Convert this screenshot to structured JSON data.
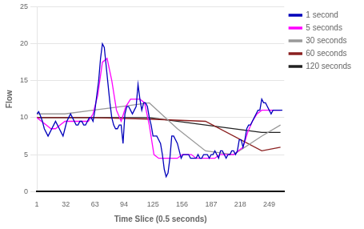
{
  "chart_data": {
    "type": "line",
    "x_label": "Time Slice (0.5 seconds)",
    "y_label": "Flow",
    "xlim": [
      1,
      265
    ],
    "ylim": [
      0,
      25
    ],
    "xticks": [
      1,
      32,
      63,
      94,
      125,
      156,
      187,
      218,
      249
    ],
    "yticks": [
      0,
      5,
      10,
      15,
      20,
      25
    ],
    "grid": "y",
    "legend": "right",
    "series": [
      {
        "name": "1 second",
        "color": "#0000BB",
        "x": [
          1,
          3,
          5,
          7,
          9,
          11,
          13,
          15,
          17,
          19,
          21,
          23,
          25,
          27,
          29,
          31,
          33,
          35,
          37,
          39,
          41,
          43,
          45,
          47,
          49,
          51,
          53,
          55,
          57,
          59,
          61,
          63,
          65,
          67,
          69,
          71,
          73,
          75,
          77,
          79,
          81,
          83,
          85,
          87,
          89,
          91,
          93,
          95,
          97,
          99,
          101,
          103,
          105,
          107,
          109,
          111,
          113,
          115,
          117,
          119,
          121,
          123,
          125,
          127,
          129,
          131,
          133,
          135,
          137,
          139,
          141,
          143,
          145,
          147,
          149,
          151,
          153,
          155,
          157,
          159,
          161,
          163,
          165,
          167,
          169,
          171,
          173,
          175,
          177,
          179,
          181,
          183,
          185,
          187,
          189,
          191,
          193,
          195,
          197,
          199,
          201,
          203,
          205,
          207,
          209,
          211,
          213,
          215,
          217,
          219,
          221,
          223,
          225,
          227,
          229,
          231,
          233,
          235,
          237,
          239,
          241,
          243,
          245,
          247,
          249,
          251,
          253,
          255,
          257,
          259,
          261,
          263
        ],
        "values": [
          10.5,
          10.8,
          10.2,
          9.5,
          8.5,
          8.0,
          7.5,
          8.0,
          8.5,
          9.0,
          9.5,
          9.0,
          8.5,
          8.0,
          7.5,
          8.5,
          9.5,
          10.0,
          10.5,
          10.0,
          9.5,
          9.0,
          9.0,
          9.5,
          9.5,
          9.0,
          9.0,
          9.5,
          10.0,
          10.0,
          9.5,
          11.0,
          13.0,
          15.0,
          18.0,
          20.0,
          19.5,
          17.0,
          14.5,
          12.0,
          10.0,
          9.0,
          8.5,
          8.5,
          9.0,
          9.0,
          6.5,
          10.5,
          11.5,
          11.5,
          11.0,
          10.5,
          11.0,
          11.5,
          14.5,
          12.5,
          11.0,
          12.0,
          12.0,
          11.5,
          10.0,
          9.0,
          7.5,
          7.5,
          7.5,
          7.0,
          6.5,
          5.0,
          3.0,
          2.0,
          2.5,
          4.5,
          7.5,
          7.5,
          7.0,
          6.5,
          5.5,
          4.5,
          5.0,
          5.0,
          5.0,
          5.0,
          4.5,
          4.5,
          4.5,
          4.5,
          5.0,
          4.5,
          4.5,
          5.0,
          5.0,
          5.0,
          4.5,
          5.0,
          5.0,
          5.5,
          5.0,
          4.5,
          5.5,
          5.5,
          5.0,
          4.5,
          5.0,
          5.0,
          5.5,
          5.5,
          5.0,
          5.5,
          7.0,
          7.0,
          6.0,
          7.0,
          8.5,
          9.0,
          9.0,
          9.5,
          10.0,
          10.5,
          11.0,
          11.0,
          12.5,
          12.0,
          12.0,
          11.5,
          11.0,
          10.5,
          11.0,
          11.0,
          11.0,
          11.0,
          11.0,
          11.0
        ]
      },
      {
        "name": "5 seconds",
        "color": "#FF00FF",
        "x": [
          1,
          6,
          11,
          16,
          21,
          26,
          31,
          36,
          41,
          46,
          51,
          56,
          61,
          66,
          71,
          76,
          81,
          86,
          91,
          96,
          101,
          106,
          111,
          116,
          121,
          126,
          131,
          136,
          141,
          146,
          151,
          156,
          161,
          166,
          171,
          176,
          181,
          186,
          191,
          196,
          201,
          206,
          211,
          216,
          221,
          226,
          231,
          236,
          241,
          246,
          251,
          256,
          261
        ],
        "values": [
          10.0,
          9.5,
          9.0,
          8.5,
          8.5,
          9.0,
          9.5,
          9.5,
          9.5,
          9.5,
          9.5,
          9.5,
          10.5,
          13.0,
          17.5,
          18.0,
          15.0,
          11.0,
          9.5,
          11.5,
          12.5,
          12.5,
          12.5,
          12.0,
          9.0,
          5.0,
          4.5,
          4.5,
          4.5,
          4.5,
          4.5,
          5.0,
          5.0,
          5.0,
          4.5,
          4.5,
          4.5,
          4.5,
          4.5,
          5.0,
          5.0,
          5.0,
          5.0,
          5.5,
          6.0,
          8.0,
          9.5,
          10.5,
          11.0,
          11.0,
          11.0,
          11.0,
          11.0
        ]
      },
      {
        "name": "30 seconds",
        "color": "#999999",
        "x": [
          1,
          31,
          61,
          91,
          121,
          151,
          181,
          211,
          241,
          261
        ],
        "values": [
          10.5,
          10.5,
          11.0,
          11.5,
          12.0,
          8.5,
          5.5,
          5.0,
          7.5,
          9.0
        ]
      },
      {
        "name": "60 seconds",
        "color": "#8B2020",
        "x": [
          1,
          61,
          121,
          181,
          241,
          261
        ],
        "values": [
          10.0,
          10.0,
          9.8,
          9.5,
          5.5,
          6.0
        ]
      },
      {
        "name": "120 seconds",
        "color": "#222222",
        "x": [
          1,
          121,
          241,
          261
        ],
        "values": [
          10.0,
          10.0,
          8.0,
          8.0
        ]
      }
    ]
  }
}
